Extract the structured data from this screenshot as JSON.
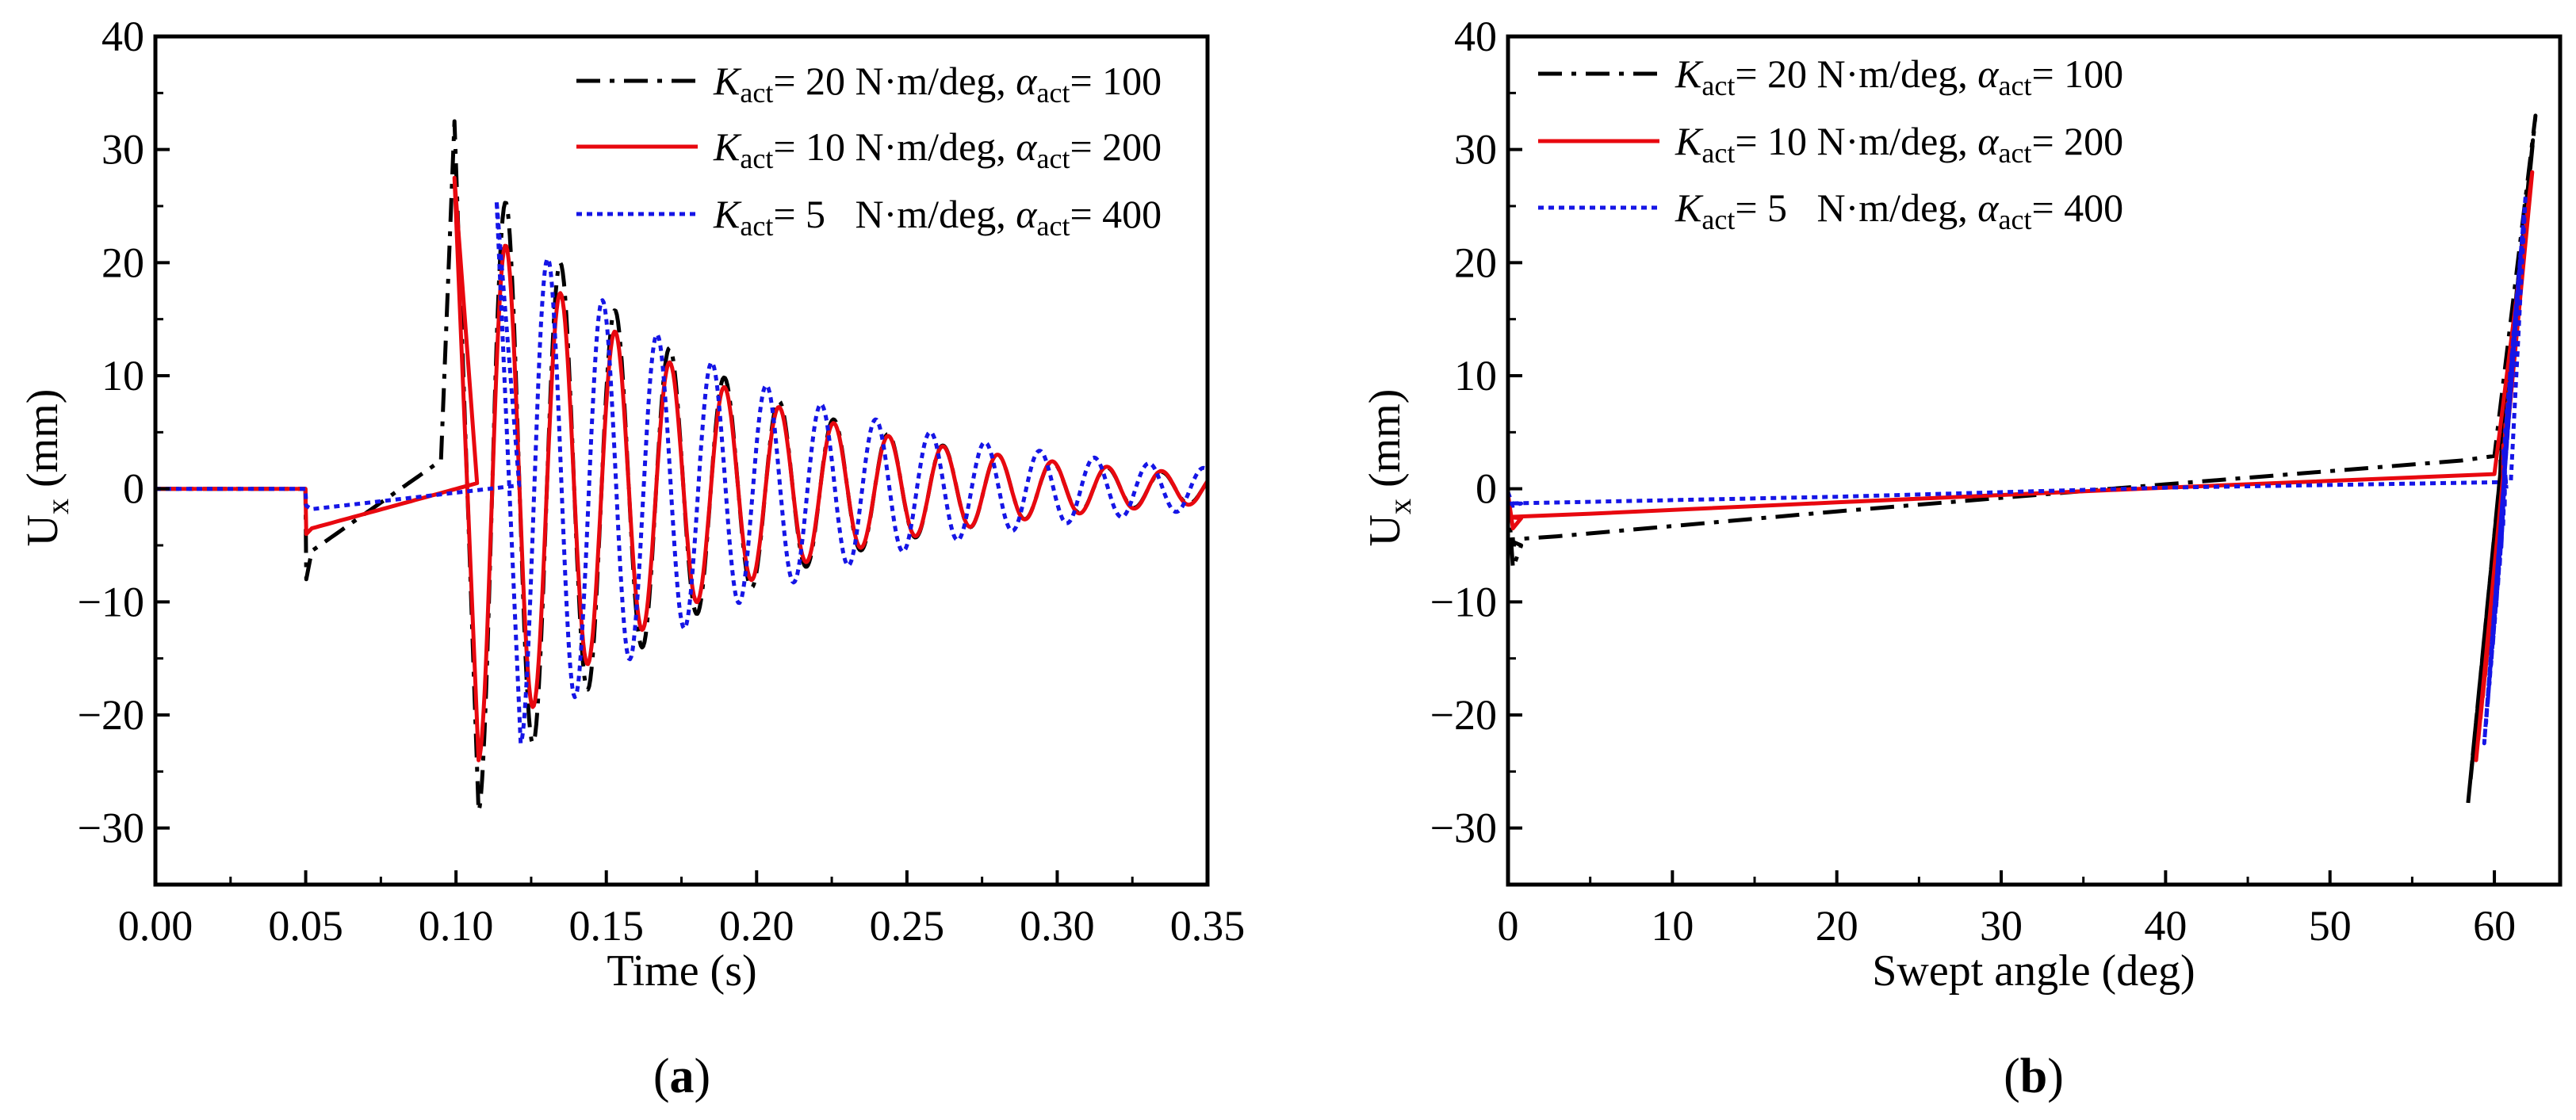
{
  "chart_data": [
    {
      "type": "line",
      "panel_label": "(a)",
      "panel_letter": "a",
      "xlabel": "Time (s)",
      "ylabel_main": "U",
      "ylabel_sub": "x",
      "ylabel_unit": " (mm)",
      "xlim": [
        0.0,
        0.35
      ],
      "ylim": [
        -35,
        40
      ],
      "xticks": [
        "0.00",
        "0.05",
        "0.10",
        "0.15",
        "0.20",
        "0.25",
        "0.30",
        "0.35"
      ],
      "yticks": [
        "−30",
        "−20",
        "−10",
        "0",
        "10",
        "20",
        "30",
        "40"
      ],
      "legend_position": "top-right",
      "series": [
        {
          "name": "Kact= 20 N·m/deg, αact= 100",
          "K": "K",
          "K_sub": "act",
          "K_val": "= 20 N·m/deg, ",
          "a": "α",
          "a_sub": "act",
          "a_val": "= 100",
          "color": "#000000",
          "style": "dashdot",
          "delay": 0.0,
          "t0": 0.1075,
          "tail_end": 0.35,
          "step_min": -8.0,
          "y_start": -5.5,
          "y_mid": 2.5,
          "t_mid": 0.095,
          "peak": 32.5,
          "trough": -28.5,
          "amp": 28,
          "freq": 55,
          "decay": 13
        },
        {
          "name": "Kact= 10 N·m/deg, αact= 200",
          "K": "K",
          "K_sub": "act",
          "K_val": "= 10 N·m/deg, ",
          "a": "α",
          "a_sub": "act",
          "a_val": "= 200",
          "color": "#e8080f",
          "style": "solid",
          "delay": 0.0,
          "t0": 0.1075,
          "tail_end": 0.35,
          "step_min": -4.0,
          "y_start": -3.5,
          "y_mid": 0.5,
          "t_mid": 0.107,
          "peak": 27.5,
          "trough": -24.0,
          "amp": 26,
          "freq": 55,
          "decay": 12
        },
        {
          "name": "Kact= 5   N·m/deg, αact= 400",
          "K": "K",
          "K_sub": "act",
          "K_val": "= 5   N·m/deg, ",
          "a": "α",
          "a_sub": "act",
          "a_val": "= 400",
          "color": "#1515e6",
          "style": "dotted",
          "delay": 0.0,
          "t0": 0.1215,
          "tail_end": 0.35,
          "step_min": -1.5,
          "y_start": -1.8,
          "y_mid": 0.3,
          "t_mid": 0.121,
          "peak": 25.5,
          "trough": -22.5,
          "amp": 24,
          "freq": 55,
          "decay": 11
        }
      ]
    },
    {
      "type": "line",
      "panel_label": "(b)",
      "panel_letter": "b",
      "xlabel": "Swept angle (deg)",
      "ylabel_main": "U",
      "ylabel_sub": "x",
      "ylabel_unit": " (mm)",
      "xlim": [
        0,
        64
      ],
      "ylim": [
        -35,
        40
      ],
      "xticks": [
        "0",
        "10",
        "20",
        "30",
        "40",
        "50",
        "60"
      ],
      "xtick_values": [
        0,
        10,
        20,
        30,
        40,
        50,
        60
      ],
      "yticks": [
        "−30",
        "−20",
        "−10",
        "0",
        "10",
        "20",
        "30",
        "40"
      ],
      "legend_position": "top-left",
      "series": [
        {
          "name": "Kact= 20 N·m/deg, αact= 100",
          "color": "#000000",
          "style": "dashdot",
          "ramp": [
            [
              0,
              -4.5
            ],
            [
              3,
              -4.2
            ],
            [
              20,
              -2.0
            ],
            [
              40,
              0.4
            ],
            [
              58,
              2.5
            ],
            [
              60,
              2.9
            ]
          ],
          "initial": [
            [
              0,
              -0.5
            ],
            [
              0.3,
              -7.0
            ],
            [
              0.8,
              -5.0
            ]
          ],
          "band_top": [
            62.5,
            33.0
          ],
          "band_bottom": [
            58.0,
            -28.0
          ]
        },
        {
          "name": "Kact= 10 N·m/deg, αact= 200",
          "color": "#e8080f",
          "style": "solid",
          "ramp": [
            [
              0,
              -2.5
            ],
            [
              5,
              -2.2
            ],
            [
              20,
              -1.2
            ],
            [
              40,
              0.1
            ],
            [
              60,
              1.3
            ]
          ],
          "initial": [
            [
              0,
              -0.5
            ],
            [
              0.3,
              -3.5
            ],
            [
              0.8,
              -2.6
            ]
          ],
          "band_top": [
            62.3,
            28.0
          ],
          "band_bottom": [
            58.5,
            -24.0
          ]
        },
        {
          "name": "Kact= 5   N·m/deg, αact= 400",
          "color": "#1515e6",
          "style": "dotted",
          "ramp": [
            [
              0,
              -1.3
            ],
            [
              20,
              -0.7
            ],
            [
              40,
              0.1
            ],
            [
              61,
              0.6
            ]
          ],
          "initial": [
            [
              0,
              -0.3
            ],
            [
              0.3,
              -1.5
            ],
            [
              0.8,
              -1.3
            ]
          ],
          "band_top": [
            61.9,
            26.0
          ],
          "band_bottom": [
            59.0,
            -22.5
          ]
        }
      ]
    }
  ]
}
